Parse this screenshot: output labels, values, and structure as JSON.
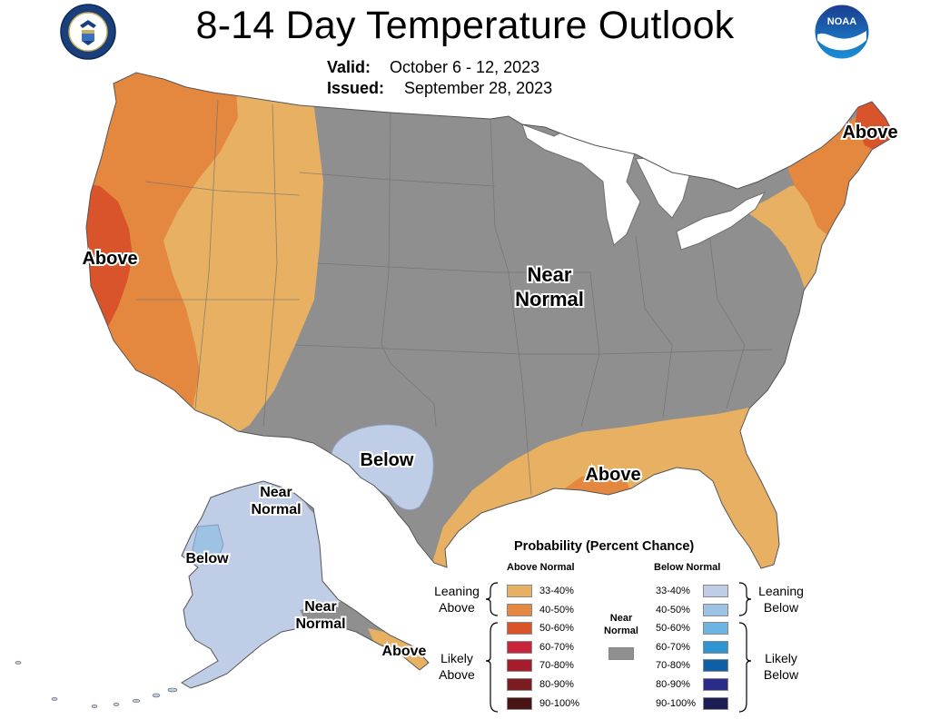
{
  "header": {
    "title": "8-14 Day Temperature Outlook",
    "valid_label": "Valid:",
    "valid_value": "October 6 - 12, 2023",
    "issued_label": "Issued:",
    "issued_value": "September 28, 2023"
  },
  "logos": {
    "left": "department-of-commerce-seal",
    "right": "noaa-logo",
    "right_text": "NOAA"
  },
  "map_labels": {
    "west_above": "Above",
    "northeast_above": "Above",
    "central_near_1": "Near",
    "central_near_2": "Normal",
    "texas_below": "Below",
    "gulf_above": "Above",
    "alaska_north_near_1": "Near",
    "alaska_north_near_2": "Normal",
    "alaska_below": "Below",
    "alaska_south_near_1": "Near",
    "alaska_south_near_2": "Normal",
    "alaska_above": "Above"
  },
  "legend": {
    "title": "Probability (Percent Chance)",
    "above_header": "Above Normal",
    "below_header": "Below Normal",
    "near_header_1": "Near",
    "near_header_2": "Normal",
    "leaning_above_1": "Leaning",
    "leaning_above_2": "Above",
    "likely_above_1": "Likely",
    "likely_above_2": "Above",
    "leaning_below_1": "Leaning",
    "leaning_below_2": "Below",
    "likely_below_1": "Likely",
    "likely_below_2": "Below",
    "above": [
      {
        "label": "33-40%",
        "color": "#e8b062"
      },
      {
        "label": "40-50%",
        "color": "#e5883f"
      },
      {
        "label": "50-60%",
        "color": "#d9532b"
      },
      {
        "label": "60-70%",
        "color": "#c8243a"
      },
      {
        "label": "70-80%",
        "color": "#a81b2a"
      },
      {
        "label": "80-90%",
        "color": "#7a1c20"
      },
      {
        "label": "90-100%",
        "color": "#4a1414"
      }
    ],
    "below": [
      {
        "label": "33-40%",
        "color": "#bfcde6"
      },
      {
        "label": "40-50%",
        "color": "#9ec2e3"
      },
      {
        "label": "50-60%",
        "color": "#6db4e2"
      },
      {
        "label": "60-70%",
        "color": "#2f95d2"
      },
      {
        "label": "70-80%",
        "color": "#0f5ea8"
      },
      {
        "label": "80-90%",
        "color": "#2b2b8a"
      },
      {
        "label": "90-100%",
        "color": "#1d1d55"
      }
    ],
    "near_color": "#8f8f8f"
  }
}
